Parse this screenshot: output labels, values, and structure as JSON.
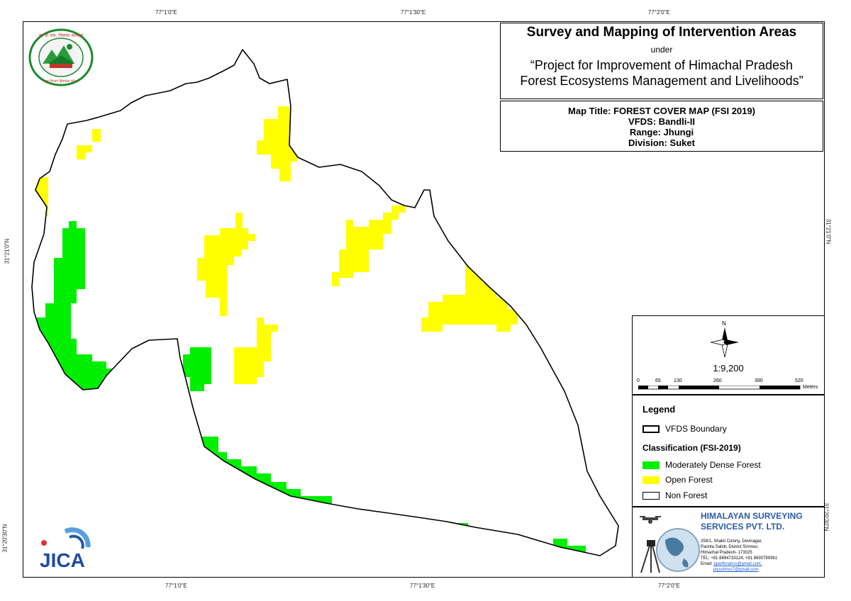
{
  "coords": {
    "top": [
      "77°1'0\"E",
      "77°1'30\"E",
      "77°2'0\"E"
    ],
    "bottom": [
      "77°1'0\"E",
      "77°1'30\"E",
      "77°2'0\"E"
    ],
    "left": [
      "31°21'0\"N",
      "31°20'30\"N"
    ],
    "right": [
      "31°21'0\"N",
      "31°20'30\"N"
    ]
  },
  "title": {
    "main": "Survey and Mapping of Intervention Areas",
    "under": "under",
    "project_line1": "“Project for Improvement of Himachal Pradesh",
    "project_line2": "Forest Ecosystems Management and Livelihoods”"
  },
  "info": {
    "map_title": "Map Title: FOREST COVER MAP (FSI 2019)",
    "vfds": "VFDS: Bandli-II",
    "range": "Range: Jhungi",
    "division": "Division: Suket"
  },
  "scale": {
    "north": "N",
    "ratio": "1:9,200",
    "ticks": [
      "0",
      "65",
      "130",
      "260",
      "390",
      "520"
    ],
    "unit": "Meters"
  },
  "legend": {
    "heading": "Legend",
    "boundary": "VFDS Boundary",
    "classification_heading": "Classification (FSI-2019)",
    "items": [
      {
        "label": "Moderately Dense Forest",
        "color": "#00ee00"
      },
      {
        "label": "Open Forest",
        "color": "#ffff00"
      },
      {
        "label": "Non Forest",
        "color": "#ffffff"
      }
    ]
  },
  "company": {
    "name_line1": "HIMALAYAN SURVEYING",
    "name_line2": "SERVICES PVT. LTD.",
    "address1": "259/1, Shakti Colony, Devinagar,",
    "address2": "Paonta Sahib, District Sirmour,",
    "address3": "Himachal Pradesh- 173025",
    "tel": "TEL: +91 8894733124, +91 8630799361",
    "email_label": "Email:",
    "email1": "pparthnahss@gmail.com,",
    "email2": "piyushhss7@gmail.com",
    "color": "#2a5aa8"
  },
  "logos": {
    "forest_dept_text": "वन ही जल, जिसका कल्याण",
    "forest_dept_bottom": "वन विभाग हिमाचल प्रदेश",
    "jica": "JICA"
  },
  "colors": {
    "moderately_dense": "#00ee00",
    "open_forest": "#ffff00"
  }
}
